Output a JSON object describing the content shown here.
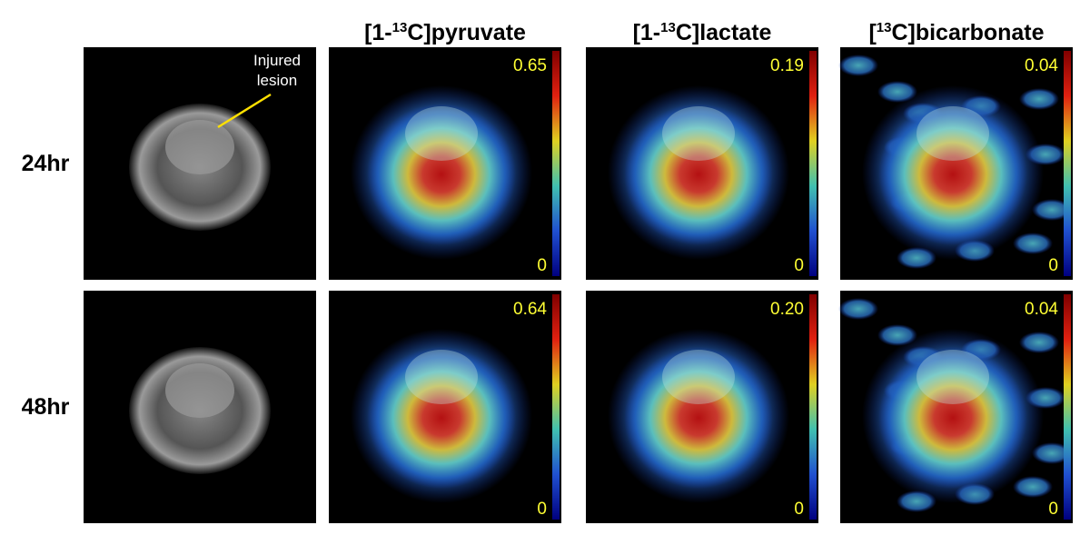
{
  "columns": [
    {
      "parts": [
        "[1-",
        "13",
        "C]pyruvate"
      ]
    },
    {
      "parts": [
        "[1-",
        "13",
        "C]lactate"
      ]
    },
    {
      "parts": [
        "[",
        "13",
        "C]bicarbonate"
      ]
    }
  ],
  "rows": [
    {
      "label": "24hr",
      "scales": [
        {
          "max": "0.65",
          "min": "0"
        },
        {
          "max": "0.19",
          "min": "0"
        },
        {
          "max": "0.04",
          "min": "0"
        }
      ]
    },
    {
      "label": "48hr",
      "scales": [
        {
          "max": "0.64",
          "min": "0"
        },
        {
          "max": "0.20",
          "min": "0"
        },
        {
          "max": "0.04",
          "min": "0"
        }
      ]
    }
  ],
  "annotation": [
    "Injured",
    "lesion"
  ]
}
